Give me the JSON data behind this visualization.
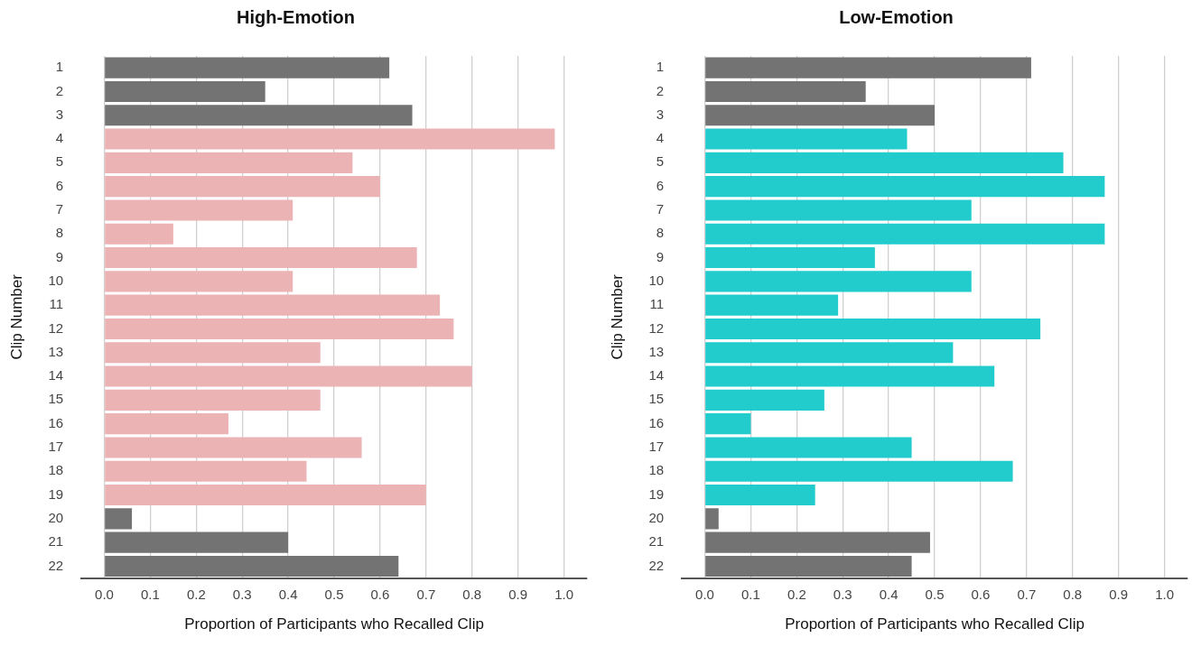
{
  "chart_data": [
    {
      "type": "bar",
      "orientation": "horizontal",
      "title": "High-Emotion",
      "xlabel": "Proportion of Participants who Recalled Clip",
      "ylabel": "Clip Number",
      "grid": "x",
      "legend": false,
      "categories": [
        "1",
        "2",
        "3",
        "4",
        "5",
        "6",
        "7",
        "8",
        "9",
        "10",
        "11",
        "12",
        "13",
        "14",
        "15",
        "16",
        "17",
        "18",
        "19",
        "20",
        "21",
        "22"
      ],
      "values": [
        0.62,
        0.35,
        0.67,
        0.98,
        0.54,
        0.6,
        0.41,
        0.15,
        0.68,
        0.41,
        0.73,
        0.76,
        0.47,
        0.8,
        0.47,
        0.27,
        0.56,
        0.44,
        0.7,
        0.06,
        0.4,
        0.64
      ],
      "colors": [
        "#737373",
        "#737373",
        "#737373",
        "#ecb3b5",
        "#ecb3b5",
        "#ecb3b5",
        "#ecb3b5",
        "#ecb3b5",
        "#ecb3b5",
        "#ecb3b5",
        "#ecb3b5",
        "#ecb3b5",
        "#ecb3b5",
        "#ecb3b5",
        "#ecb3b5",
        "#ecb3b5",
        "#ecb3b5",
        "#ecb3b5",
        "#ecb3b5",
        "#737373",
        "#737373",
        "#737373"
      ],
      "xlim": [
        -0.05,
        1.05
      ],
      "xticks": [
        {
          "value": 0,
          "label": "0.0"
        },
        {
          "value": 0.1,
          "label": "0.1"
        },
        {
          "value": 0.2,
          "label": "0.2"
        },
        {
          "value": 0.3,
          "label": "0.3"
        },
        {
          "value": 0.4,
          "label": "0.4"
        },
        {
          "value": 0.5,
          "label": "0.5"
        },
        {
          "value": 0.6,
          "label": "0.6"
        },
        {
          "value": 0.7,
          "label": "0.7"
        },
        {
          "value": 0.8,
          "label": "0.8"
        },
        {
          "value": 0.9,
          "label": "0.9"
        },
        {
          "value": 1,
          "label": "1.0"
        }
      ]
    },
    {
      "type": "bar",
      "orientation": "horizontal",
      "title": "Low-Emotion",
      "xlabel": "Proportion of Participants who Recalled Clip",
      "ylabel": "Clip Number",
      "grid": "x",
      "legend": false,
      "categories": [
        "1",
        "2",
        "3",
        "4",
        "5",
        "6",
        "7",
        "8",
        "9",
        "10",
        "11",
        "12",
        "13",
        "14",
        "15",
        "16",
        "17",
        "18",
        "19",
        "20",
        "21",
        "22"
      ],
      "values": [
        0.71,
        0.35,
        0.5,
        0.44,
        0.78,
        0.87,
        0.58,
        0.87,
        0.37,
        0.58,
        0.29,
        0.73,
        0.54,
        0.63,
        0.26,
        0.1,
        0.45,
        0.67,
        0.24,
        0.03,
        0.49,
        0.45
      ],
      "colors": [
        "#737373",
        "#737373",
        "#737373",
        "#22cbcc",
        "#22cbcc",
        "#22cbcc",
        "#22cbcc",
        "#22cbcc",
        "#22cbcc",
        "#22cbcc",
        "#22cbcc",
        "#22cbcc",
        "#22cbcc",
        "#22cbcc",
        "#22cbcc",
        "#22cbcc",
        "#22cbcc",
        "#22cbcc",
        "#22cbcc",
        "#737373",
        "#737373",
        "#737373"
      ],
      "xlim": [
        -0.05,
        1.05
      ],
      "xticks": [
        {
          "value": 0,
          "label": "0.0"
        },
        {
          "value": 0.1,
          "label": "0.1"
        },
        {
          "value": 0.2,
          "label": "0.2"
        },
        {
          "value": 0.3,
          "label": "0.3"
        },
        {
          "value": 0.4,
          "label": "0.4"
        },
        {
          "value": 0.5,
          "label": "0.5"
        },
        {
          "value": 0.6,
          "label": "0.6"
        },
        {
          "value": 0.7,
          "label": "0.7"
        },
        {
          "value": 0.8,
          "label": "0.8"
        },
        {
          "value": 0.9,
          "label": "0.9"
        },
        {
          "value": 1,
          "label": "1.0"
        }
      ]
    }
  ]
}
